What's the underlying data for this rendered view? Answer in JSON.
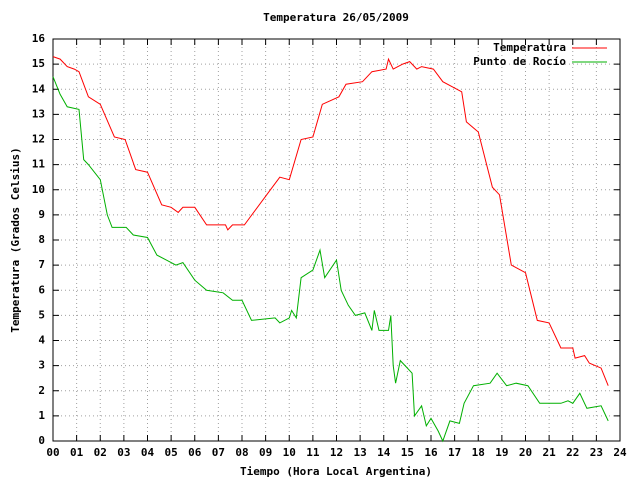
{
  "chart_data": {
    "type": "line",
    "title": "Temperatura 26/05/2009",
    "xlabel": "Tiempo (Hora Local Argentina)",
    "ylabel": "Temperatura (Grados Celsius)",
    "xlim": [
      0,
      24
    ],
    "ylim": [
      0,
      16
    ],
    "xticks": [
      {
        "value": 0,
        "label": "00"
      },
      {
        "value": 1,
        "label": "01"
      },
      {
        "value": 2,
        "label": "02"
      },
      {
        "value": 3,
        "label": "03"
      },
      {
        "value": 4,
        "label": "04"
      },
      {
        "value": 5,
        "label": "05"
      },
      {
        "value": 6,
        "label": "06"
      },
      {
        "value": 7,
        "label": "07"
      },
      {
        "value": 8,
        "label": "08"
      },
      {
        "value": 9,
        "label": "09"
      },
      10,
      11,
      12,
      13,
      14,
      15,
      16,
      17,
      18,
      19,
      20,
      21,
      22,
      23,
      24
    ],
    "yticks": [
      0,
      1,
      2,
      3,
      4,
      5,
      6,
      7,
      8,
      9,
      10,
      11,
      12,
      13,
      14,
      15,
      16
    ],
    "grid": true,
    "legend": "top-right",
    "series": [
      {
        "name": "Temperatura",
        "color": "#ff0000",
        "x": [
          0,
          0.3,
          0.6,
          0.9,
          1.1,
          1.5,
          2.0,
          2.6,
          3.05,
          3.5,
          4.0,
          4.6,
          5.0,
          5.3,
          5.5,
          6.0,
          6.5,
          7.3,
          7.4,
          7.6,
          8.1,
          9.2,
          9.6,
          10.0,
          10.5,
          11.0,
          11.4,
          12.1,
          12.4,
          13.1,
          13.5,
          14.1,
          14.2,
          14.4,
          14.8,
          15.1,
          15.4,
          15.6,
          16.1,
          16.5,
          17.3,
          17.5,
          18.0,
          18.6,
          18.9,
          19.4,
          20.0,
          20.5,
          21.0,
          21.5,
          22.0,
          22.1,
          22.5,
          22.7,
          23.2,
          23.5
        ],
        "values": [
          15.3,
          15.2,
          14.9,
          14.8,
          14.7,
          13.7,
          13.4,
          12.1,
          12.0,
          10.8,
          10.7,
          9.4,
          9.3,
          9.1,
          9.3,
          9.3,
          8.6,
          8.6,
          8.4,
          8.6,
          8.6,
          10.0,
          10.5,
          10.4,
          12.0,
          12.1,
          13.4,
          13.7,
          14.2,
          14.3,
          14.7,
          14.8,
          15.2,
          14.8,
          15.0,
          15.1,
          14.8,
          14.9,
          14.8,
          14.3,
          13.9,
          12.7,
          12.3,
          10.1,
          9.8,
          7.0,
          6.7,
          4.8,
          4.7,
          3.7,
          3.7,
          3.3,
          3.4,
          3.1,
          2.9,
          2.2
        ]
      },
      {
        "name": "Punto de Rocío",
        "color": "#00b000",
        "x": [
          0,
          0.3,
          0.6,
          1.1,
          1.3,
          1.5,
          2.0,
          2.3,
          2.5,
          3.1,
          3.4,
          4.0,
          4.4,
          4.8,
          5.2,
          5.5,
          6.0,
          6.5,
          7.2,
          7.6,
          8.0,
          8.4,
          9.4,
          9.6,
          10.0,
          10.1,
          10.3,
          10.5,
          11.0,
          11.3,
          11.5,
          12.0,
          12.2,
          12.5,
          12.8,
          13.2,
          13.5,
          13.6,
          13.8,
          14.2,
          14.3,
          14.4,
          14.5,
          14.7,
          15.0,
          15.2,
          15.3,
          15.6,
          15.8,
          16.0,
          16.3,
          16.5,
          16.8,
          17.2,
          17.4,
          17.8,
          18.5,
          18.8,
          19.2,
          19.6,
          20.1,
          20.6,
          21.5,
          21.8,
          22.0,
          22.3,
          22.6,
          23.2,
          23.5
        ],
        "values": [
          14.5,
          13.8,
          13.3,
          13.2,
          11.2,
          11.0,
          10.4,
          9.0,
          8.5,
          8.5,
          8.2,
          8.1,
          7.4,
          7.2,
          7.0,
          7.1,
          6.4,
          6.0,
          5.9,
          5.6,
          5.6,
          4.8,
          4.9,
          4.7,
          4.9,
          5.2,
          4.9,
          6.5,
          6.8,
          7.6,
          6.5,
          7.2,
          6.0,
          5.4,
          5.0,
          5.1,
          4.4,
          5.2,
          4.4,
          4.4,
          5.0,
          3.0,
          2.3,
          3.2,
          2.9,
          2.7,
          1.0,
          1.4,
          0.6,
          0.9,
          0.4,
          0.0,
          0.8,
          0.7,
          1.5,
          2.2,
          2.3,
          2.7,
          2.2,
          2.3,
          2.2,
          1.5,
          1.5,
          1.6,
          1.5,
          1.9,
          1.3,
          1.4,
          0.8
        ]
      }
    ]
  }
}
